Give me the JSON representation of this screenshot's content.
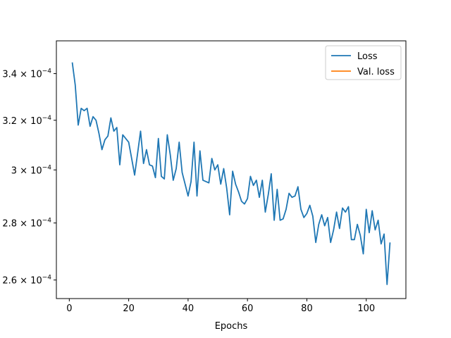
{
  "chart_data": {
    "type": "line",
    "title": "",
    "xlabel": "Epochs",
    "ylabel": "",
    "xlim": [
      -4.35,
      113.35
    ],
    "ylim": [
      0.0002538,
      0.0003548
    ],
    "yscale": "log",
    "grid": false,
    "legend_position": "top-right",
    "xticks": [
      0,
      20,
      40,
      60,
      80,
      100
    ],
    "yticks": [
      {
        "value": 0.00026,
        "mantissa": "2.6",
        "exp": "−4"
      },
      {
        "value": 0.00028,
        "mantissa": "2.8",
        "exp": "−4"
      },
      {
        "value": 0.0003,
        "mantissa": "3",
        "exp": "−4"
      },
      {
        "value": 0.00032,
        "mantissa": "3.2",
        "exp": "−4"
      },
      {
        "value": 0.00034,
        "mantissa": "3.4",
        "exp": "−4"
      }
    ],
    "series": [
      {
        "name": "Loss",
        "color": "#1f77b4",
        "x": [
          1,
          2,
          3,
          4,
          5,
          6,
          7,
          8,
          9,
          10,
          11,
          12,
          13,
          14,
          15,
          16,
          17,
          18,
          19,
          20,
          21,
          22,
          23,
          24,
          25,
          26,
          27,
          28,
          29,
          30,
          31,
          32,
          33,
          34,
          35,
          36,
          37,
          38,
          39,
          40,
          41,
          42,
          43,
          44,
          45,
          46,
          47,
          48,
          49,
          50,
          51,
          52,
          53,
          54,
          55,
          56,
          57,
          58,
          59,
          60,
          61,
          62,
          63,
          64,
          65,
          66,
          67,
          68,
          69,
          70,
          71,
          72,
          73,
          74,
          75,
          76,
          77,
          78,
          79,
          80,
          81,
          82,
          83,
          84,
          85,
          86,
          87,
          88,
          89,
          90,
          91,
          92,
          93,
          94,
          95,
          96,
          97,
          98,
          99,
          100,
          101,
          102,
          103,
          104,
          105,
          106,
          107,
          108
        ],
        "values": [
          0.000345,
          0.000335,
          0.000318,
          0.000325,
          0.000324,
          0.000325,
          0.0003175,
          0.0003215,
          0.00032,
          0.0003145,
          0.000308,
          0.000312,
          0.0003135,
          0.000321,
          0.0003155,
          0.000317,
          0.000302,
          0.000314,
          0.0003125,
          0.000311,
          0.0003045,
          0.000298,
          0.0003065,
          0.0003155,
          0.0003025,
          0.000308,
          0.000302,
          0.0003015,
          0.000297,
          0.0003125,
          0.0002975,
          0.0002965,
          0.000314,
          0.000306,
          0.000296,
          0.0003005,
          0.000311,
          0.000299,
          0.0002945,
          0.00029,
          0.0002955,
          0.000311,
          0.00029,
          0.0003075,
          0.000296,
          0.0002955,
          0.000295,
          0.0003045,
          0.0003,
          0.000302,
          0.0002945,
          0.0003005,
          0.000293,
          0.000283,
          0.0002995,
          0.0002945,
          0.0002915,
          0.000288,
          0.000287,
          0.000289,
          0.0002975,
          0.000294,
          0.000296,
          0.0002895,
          0.000296,
          0.000284,
          0.0002905,
          0.0002985,
          0.000281,
          0.0002925,
          0.000281,
          0.0002815,
          0.000285,
          0.000291,
          0.0002895,
          0.00029,
          0.0002935,
          0.000285,
          0.000282,
          0.0002835,
          0.0002865,
          0.0002825,
          0.000273,
          0.0002795,
          0.000283,
          0.000279,
          0.000282,
          0.000273,
          0.0002775,
          0.000284,
          0.000278,
          0.0002855,
          0.000284,
          0.000286,
          0.000274,
          0.000274,
          0.0002795,
          0.0002755,
          0.000269,
          0.000285,
          0.0002765,
          0.0002845,
          0.0002775,
          0.000281,
          0.0002725,
          0.000276,
          0.0002585,
          0.000273
        ]
      },
      {
        "name": "Val. loss",
        "color": "#ff7f0e",
        "x": [],
        "values": []
      }
    ]
  }
}
